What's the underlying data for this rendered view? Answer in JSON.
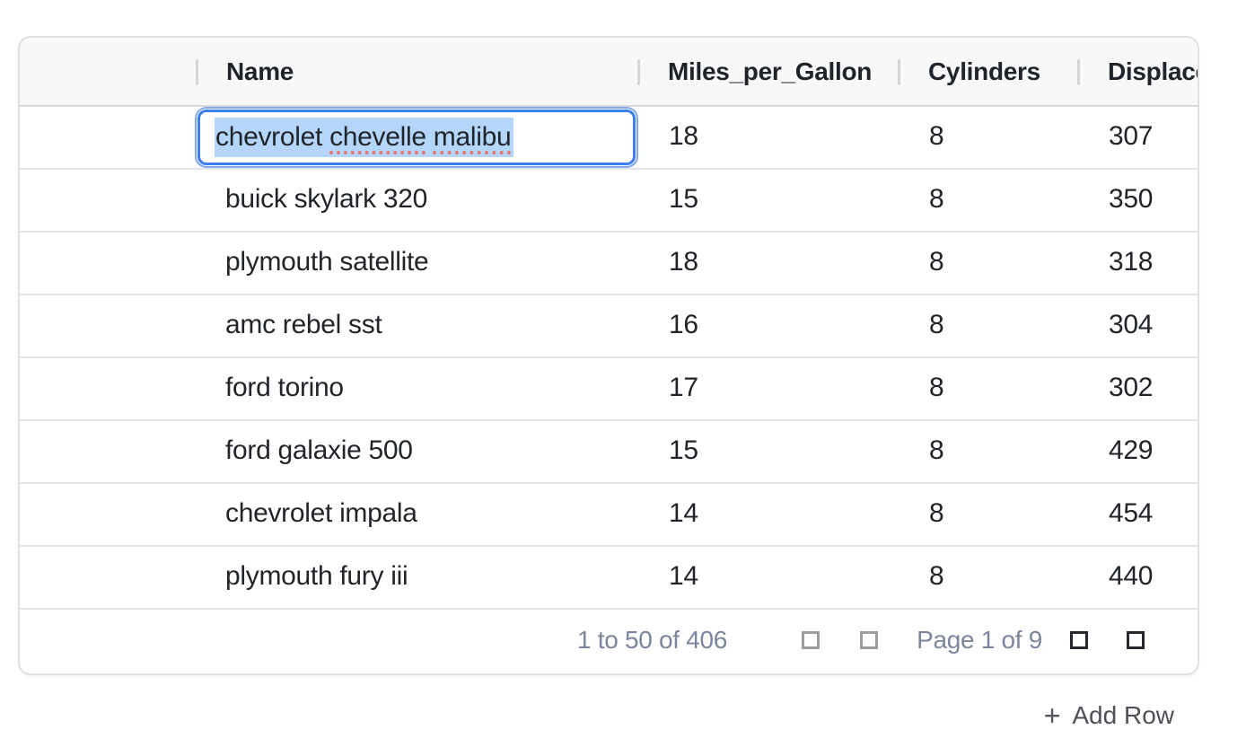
{
  "table": {
    "columns": [
      {
        "key": "name",
        "label": "Name"
      },
      {
        "key": "mpg",
        "label": "Miles_per_Gallon"
      },
      {
        "key": "cyl",
        "label": "Cylinders"
      },
      {
        "key": "disp",
        "label": "Displacement"
      }
    ],
    "rows": [
      {
        "name": "chevrolet chevelle malibu",
        "mpg": "18",
        "cyl": "8",
        "disp": "307",
        "editing": true
      },
      {
        "name": "buick skylark 320",
        "mpg": "15",
        "cyl": "8",
        "disp": "350"
      },
      {
        "name": "plymouth satellite",
        "mpg": "18",
        "cyl": "8",
        "disp": "318"
      },
      {
        "name": "amc rebel sst",
        "mpg": "16",
        "cyl": "8",
        "disp": "304"
      },
      {
        "name": "ford torino",
        "mpg": "17",
        "cyl": "8",
        "disp": "302"
      },
      {
        "name": "ford galaxie 500",
        "mpg": "15",
        "cyl": "8",
        "disp": "429"
      },
      {
        "name": "chevrolet impala",
        "mpg": "14",
        "cyl": "8",
        "disp": "454"
      },
      {
        "name": "plymouth fury iii",
        "mpg": "14",
        "cyl": "8",
        "disp": "440"
      }
    ],
    "editor": {
      "value": "chevrolet chevelle malibu",
      "selected": true,
      "segments": [
        {
          "text": "chevrolet ",
          "misspelled": false
        },
        {
          "text": "chevelle",
          "misspelled": true
        },
        {
          "text": " ",
          "misspelled": false
        },
        {
          "text": "malibu",
          "misspelled": true
        }
      ]
    }
  },
  "pagination": {
    "summary": "1 to 50 of 406",
    "page_status": "Page 1 of 9",
    "first_disabled": true,
    "previous_disabled": true,
    "next_disabled": false,
    "last_disabled": false
  },
  "actions": {
    "add_row_icon": "+",
    "add_row_label": "Add Row"
  },
  "colors": {
    "accent_blue": "#3d7ef2",
    "selection_blue": "#b5d6fb",
    "spellcheck_red": "#e8756d",
    "header_bg": "#f8f8f8",
    "border_gray": "#e0e0e0",
    "row_border": "#e5e5e5",
    "text_dark": "#21252a",
    "pagination_text": "#7b859c",
    "pager_enabled": "#26282d",
    "pager_disabled": "#9d9d9d"
  }
}
